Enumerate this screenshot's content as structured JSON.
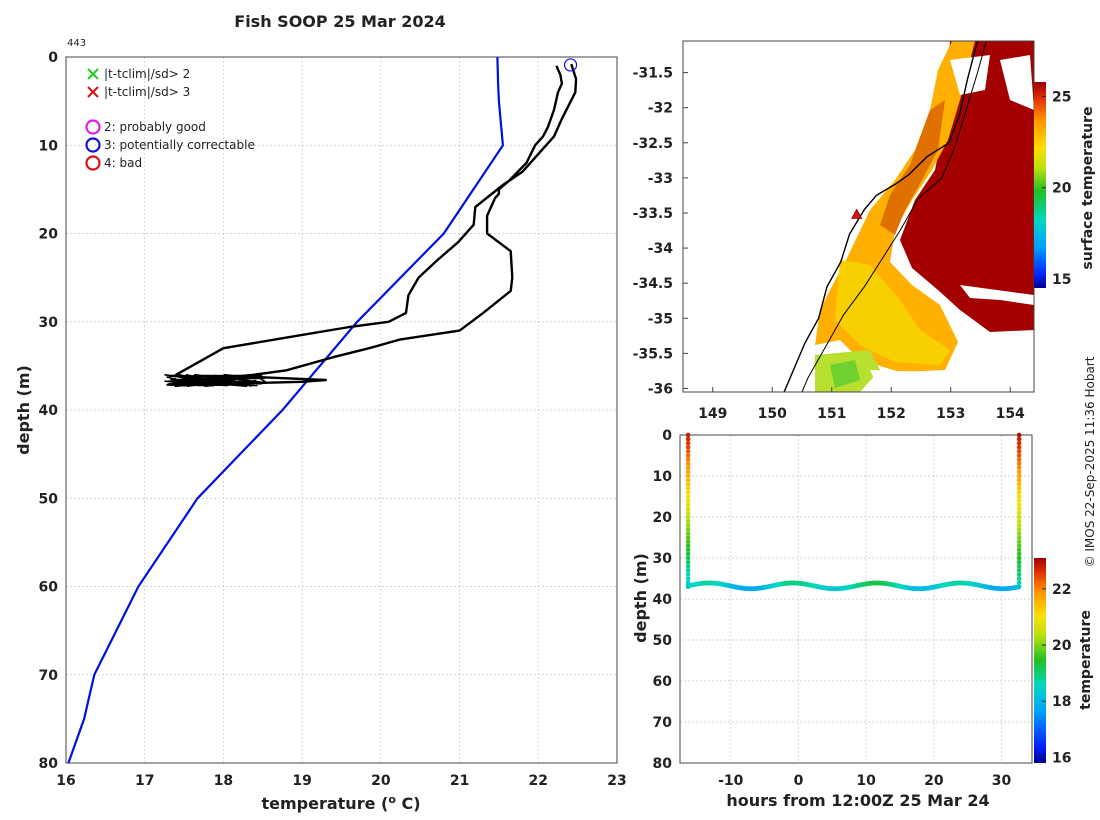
{
  "title": "Fish SOOP 25 Mar 2024",
  "drop_id": "443",
  "credit": "© IMOS 22-Sep-2025 11:36 Hobart",
  "colors": {
    "climatology": "#0010e0",
    "profile": "#000000",
    "flag_x2": "#22d022",
    "flag_x3": "#e01010",
    "qc2": "#e020e0",
    "qc3": "#1010e0",
    "qc4": "#e01010",
    "grid": "#c8c8c8"
  },
  "legend": {
    "flag2": "|t-tclim|/sd> 2",
    "flag3": "|t-tclim|/sd> 3",
    "qc2": "2: probably good",
    "qc3": "3: potentially correctable",
    "qc4": "4: bad"
  },
  "chart_data": [
    {
      "type": "line",
      "name": "profile",
      "title": "Fish SOOP 25 Mar 2024",
      "xlabel": "temperature (",
      "xlabel_sup": "o",
      "xlabel_unit": " C)",
      "ylabel": "depth (m)",
      "xlim": [
        16,
        23
      ],
      "ylim": [
        80,
        0
      ],
      "xticks": [
        16,
        17,
        18,
        19,
        20,
        21,
        22,
        23
      ],
      "yticks": [
        0,
        10,
        20,
        30,
        40,
        50,
        60,
        70,
        80
      ],
      "series": [
        {
          "name": "climatology",
          "temperature": [
            21.48,
            21.49,
            21.5,
            21.55,
            20.8,
            19.7,
            18.75,
            17.67,
            16.92,
            16.36,
            16.23,
            16.03
          ],
          "depth": [
            0,
            3,
            5,
            10,
            20,
            30,
            40,
            50,
            60,
            70,
            75,
            80
          ]
        },
        {
          "name": "profile",
          "temperature": [
            22.42,
            22.48,
            22.47,
            22.3,
            22.2,
            22.0,
            21.8,
            21.55,
            21.2,
            21.18,
            20.98,
            20.72,
            20.48,
            20.35,
            20.32,
            20.1,
            19.6,
            18.8,
            18.0,
            17.4,
            17.7,
            18.5,
            19.3,
            19.0,
            18.2,
            17.5,
            17.3,
            17.9,
            18.8,
            19.4,
            19.85,
            20.25,
            21.0,
            21.3,
            21.65,
            21.67,
            21.65,
            21.35,
            21.35,
            21.45,
            21.5,
            21.5,
            21.63,
            21.85,
            21.96,
            22.06,
            22.12,
            22.2,
            22.25,
            22.3,
            22.28,
            22.23
          ],
          "depth": [
            0.8,
            2.5,
            4,
            7,
            9,
            11,
            13,
            14.5,
            17,
            19,
            21,
            23,
            25,
            27,
            29,
            30,
            30.6,
            31.8,
            33,
            36,
            36.5,
            36.3,
            36.6,
            36.8,
            37,
            37.2,
            37.1,
            36.6,
            35.5,
            34,
            33,
            32,
            31,
            29,
            26.5,
            25,
            22,
            20,
            18,
            16,
            15.5,
            15,
            14,
            12,
            10,
            9,
            8,
            6,
            4,
            3,
            2,
            1
          ]
        }
      ],
      "qc_marker": {
        "class": "3: potentially correctable",
        "temperature": 22.41,
        "depth": 0.9
      }
    },
    {
      "type": "heatmap",
      "name": "sst_map",
      "xlabel": "",
      "ylabel": "",
      "colorbar_label": "surface temperature",
      "xlim": [
        148.5,
        154.4
      ],
      "ylim": [
        -36.05,
        -31.05
      ],
      "xticks": [
        149,
        150,
        151,
        152,
        153,
        154
      ],
      "yticks": [
        -31.5,
        -32,
        -32.5,
        -33,
        -33.5,
        -34,
        -34.5,
        -35,
        -35.5,
        -36
      ],
      "ytick_labels": [
        "-31.5",
        "-32",
        "-32.5",
        "-33",
        "-33.5",
        "-34",
        "-34.5",
        "-35",
        "-35.5",
        "-36"
      ],
      "colorbar_range": [
        14.5,
        25.8
      ],
      "colorbar_ticks": [
        15,
        20,
        25
      ],
      "coastline": [
        [
          153.45,
          -31.05
        ],
        [
          153.28,
          -31.6
        ],
        [
          153.15,
          -32.1
        ],
        [
          152.97,
          -32.5
        ],
        [
          152.6,
          -32.7
        ],
        [
          152.3,
          -32.95
        ],
        [
          152.05,
          -33.1
        ],
        [
          151.75,
          -33.25
        ],
        [
          151.55,
          -33.45
        ],
        [
          151.3,
          -33.8
        ],
        [
          151.15,
          -34.2
        ],
        [
          150.92,
          -34.55
        ],
        [
          150.78,
          -35.0
        ],
        [
          150.55,
          -35.35
        ],
        [
          150.35,
          -35.75
        ],
        [
          150.2,
          -36.05
        ]
      ],
      "shelf_line": [
        [
          153.6,
          -31.05
        ],
        [
          153.45,
          -31.5
        ],
        [
          153.2,
          -32.2
        ],
        [
          153.05,
          -32.6
        ],
        [
          152.85,
          -33.0
        ],
        [
          152.45,
          -33.3
        ],
        [
          152.15,
          -33.75
        ],
        [
          151.85,
          -34.15
        ],
        [
          151.55,
          -34.55
        ],
        [
          151.2,
          -34.95
        ],
        [
          150.9,
          -35.4
        ],
        [
          150.6,
          -35.85
        ],
        [
          150.5,
          -36.05
        ]
      ],
      "drop_location": [
        151.42,
        -33.52
      ]
    },
    {
      "type": "scatter",
      "name": "depth_time",
      "xlabel": "hours from 12:00Z 25 Mar 24",
      "ylabel": "depth (m)",
      "colorbar_label": "temperature",
      "xlim": [
        -17.5,
        34.5
      ],
      "ylim": [
        80,
        0
      ],
      "xticks": [
        -10,
        0,
        10,
        20,
        30
      ],
      "yticks": [
        0,
        10,
        20,
        30,
        40,
        50,
        60,
        70,
        80
      ],
      "colorbar_range": [
        15.8,
        23.1
      ],
      "colorbar_ticks": [
        16,
        18,
        20,
        22
      ],
      "left_cast": {
        "hours": -16.3,
        "depth_top": 0,
        "depth_bottom": 37,
        "temp_top": 22.8,
        "temp_bottom": 18.3
      },
      "right_cast": {
        "hours": 32.6,
        "depth_top": 0,
        "depth_bottom": 37,
        "temp_top": 22.9,
        "temp_bottom": 18.6
      },
      "tow": {
        "hours_start": -16.3,
        "hours_end": 32.6,
        "mean_depth": 36.8,
        "amplitude": 0.7,
        "period_hours": 12.4,
        "temp_base": 18.5,
        "temp_amp": 0.45
      }
    }
  ]
}
